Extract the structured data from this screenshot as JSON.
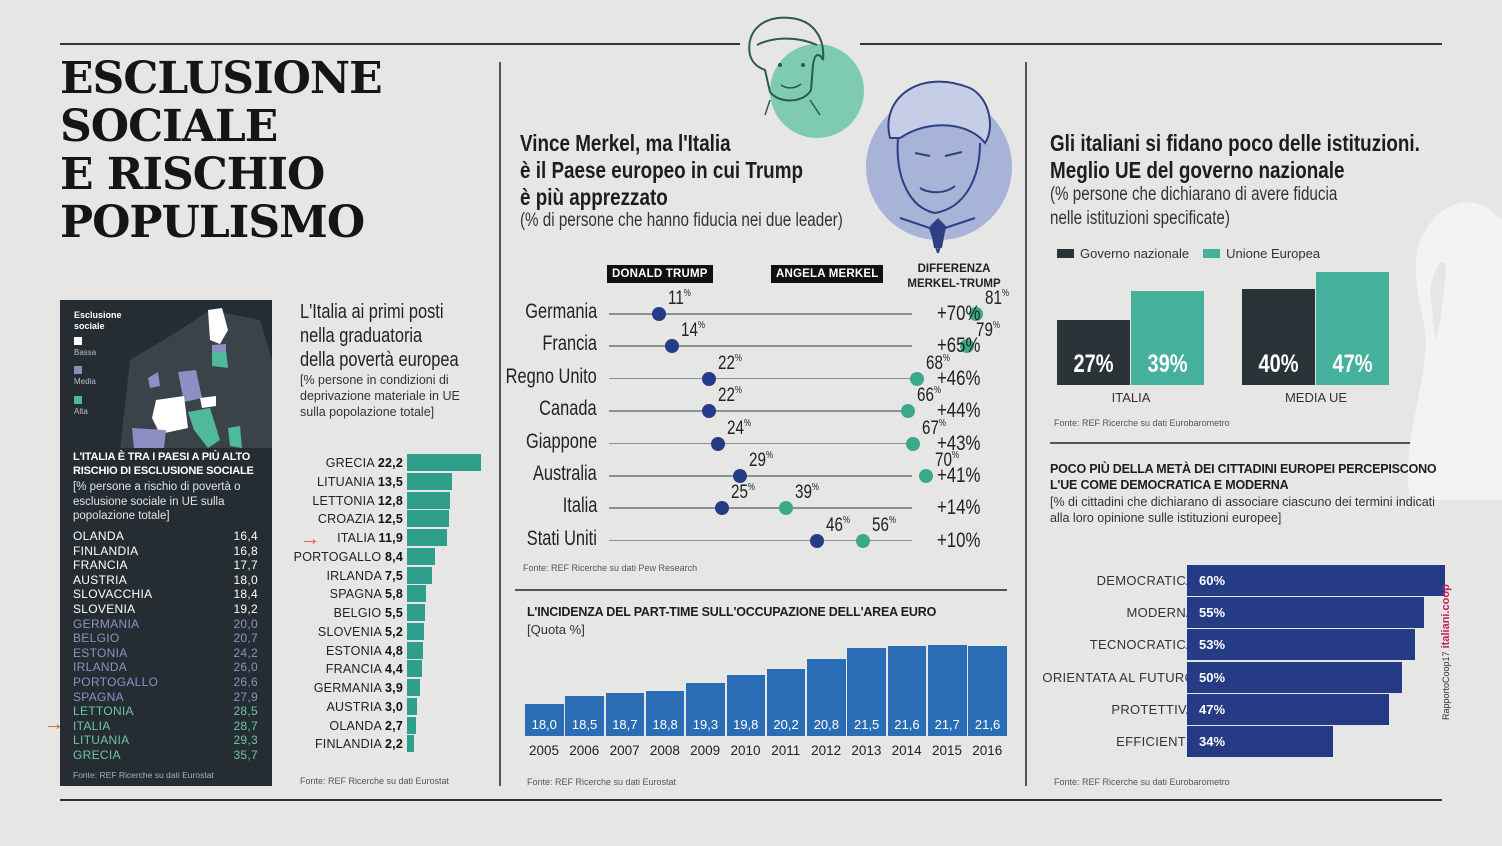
{
  "main_title": [
    "ESCLUSIONE",
    "SOCIALE",
    "E RISCHIO",
    "POPULISMO"
  ],
  "exclusion": {
    "map_legend_title": "Esclusione sociale",
    "map_legend": [
      {
        "label": "Bassa",
        "color": "#ffffff"
      },
      {
        "label": "Media",
        "color": "#8c8fc4"
      },
      {
        "label": "Alta",
        "color": "#4fb99a"
      }
    ],
    "heading": "L'ITALIA È TRA I PAESI A PIÙ ALTO RISCHIO DI ESCLUSIONE SOCIALE",
    "subheading": "[% persone a rischio di povertà o esclusione sociale in UE sulla popolazione totale]",
    "source": "Fonte: REF Ricerche su dati Eurostat",
    "highlight": "ITALIA",
    "rows": [
      {
        "country": "OLANDA",
        "value": "16,4",
        "level": "Bassa"
      },
      {
        "country": "FINLANDIA",
        "value": "16,8",
        "level": "Bassa"
      },
      {
        "country": "FRANCIA",
        "value": "17,7",
        "level": "Bassa"
      },
      {
        "country": "AUSTRIA",
        "value": "18,0",
        "level": "Bassa"
      },
      {
        "country": "SLOVACCHIA",
        "value": "18,4",
        "level": "Bassa"
      },
      {
        "country": "SLOVENIA",
        "value": "19,2",
        "level": "Bassa"
      },
      {
        "country": "GERMANIA",
        "value": "20,0",
        "level": "Media"
      },
      {
        "country": "BELGIO",
        "value": "20,7",
        "level": "Media"
      },
      {
        "country": "ESTONIA",
        "value": "24,2",
        "level": "Media"
      },
      {
        "country": "IRLANDA",
        "value": "26,0",
        "level": "Media"
      },
      {
        "country": "PORTOGALLO",
        "value": "26,6",
        "level": "Media"
      },
      {
        "country": "SPAGNA",
        "value": "27,9",
        "level": "Media"
      },
      {
        "country": "LETTONIA",
        "value": "28,5",
        "level": "Alta"
      },
      {
        "country": "ITALIA",
        "value": "28,7",
        "level": "Alta"
      },
      {
        "country": "LITUANIA",
        "value": "29,3",
        "level": "Alta"
      },
      {
        "country": "GRECIA",
        "value": "35,7",
        "level": "Alta"
      }
    ]
  },
  "deprivation": {
    "title": [
      "L'Italia ai primi posti",
      "nella graduatoria",
      "della povertà europea"
    ],
    "subheading": "[% persone in condizioni di deprivazione materiale in UE sulla popolazione totale]",
    "source": "Fonte: REF Ricerche su dati Eurostat",
    "color": "#2f9e8b"
  },
  "trust": {
    "title": [
      "Vince Merkel, ma l'Italia",
      "è il Paese europeo in cui Trump",
      "è più apprezzato"
    ],
    "subheading": "(% di persone che hanno fiducia nei due leader)",
    "col_trump": "DONALD TRUMP",
    "col_merkel": "ANGELA MERKEL",
    "col_diff": [
      "DIFFERENZA",
      "MERKEL-TRUMP"
    ],
    "source": "Fonte: REF Ricerche su dati Pew Research",
    "trump_color": "#263b86",
    "merkel_color": "#3aa88b"
  },
  "parttime": {
    "title": "L'INCIDENZA DEL PART-TIME SULL'OCCUPAZIONE DELL'AREA EURO",
    "subheading": "[Quota %]",
    "source": "Fonte: REF Ricerche su dati Eurostat",
    "color": "#2a6db4"
  },
  "fiducia": {
    "title": [
      "Gli italiani si fidano poco delle istituzioni.",
      "Meglio UE del governo nazionale"
    ],
    "subheading": [
      "(% persone che dichiarano di avere fiducia",
      "nelle istituzioni specificate)"
    ],
    "source": "Fonte: REF Ricerche su dati Eurobarometro"
  },
  "eu_perception": {
    "title": "POCO PIÙ DELLA METÀ DEI CITTADINI EUROPEI PERCEPISCONO L'UE COME DEMOCRATICA E MODERNA",
    "subheading": "[% di cittadini che dichiarano di associare ciascuno dei termini indicati alla loro opinione sulle istituzioni europee]",
    "source": "Fonte: REF Ricerche su dati Eurobarometro"
  },
  "brand": {
    "text1": "RapportoCoop17",
    "text2": "italiani.coop"
  },
  "chart_data": [
    {
      "type": "bar",
      "orientation": "horizontal",
      "title": "L'Italia ai primi posti nella graduatoria della povertà europea",
      "ylabel": "% persone in condizioni di deprivazione materiale",
      "categories": [
        "GRECIA",
        "LITUANIA",
        "LETTONIA",
        "CROAZIA",
        "ITALIA",
        "PORTOGALLO",
        "IRLANDA",
        "SPAGNA",
        "BELGIO",
        "SLOVENIA",
        "ESTONIA",
        "FRANCIA",
        "GERMANIA",
        "AUSTRIA",
        "OLANDA",
        "FINLANDIA"
      ],
      "values": [
        22.2,
        13.5,
        12.8,
        12.5,
        11.9,
        8.4,
        7.5,
        5.8,
        5.5,
        5.2,
        4.8,
        4.4,
        3.9,
        3.0,
        2.7,
        2.2
      ],
      "labels": [
        "22,2",
        "13,5",
        "12,8",
        "12,5",
        "11,9",
        "8,4",
        "7,5",
        "5,8",
        "5,5",
        "5,2",
        "4,8",
        "4,4",
        "3,9",
        "3,0",
        "2,7",
        "2,2"
      ],
      "highlight": "ITALIA"
    },
    {
      "type": "scatter",
      "subtype": "dumbbell",
      "title": "Vince Merkel, ma l'Italia è il Paese europeo in cui Trump è più apprezzato",
      "categories": [
        "Germania",
        "Francia",
        "Regno Unito",
        "Canada",
        "Giappone",
        "Australia",
        "Italia",
        "Stati Uniti"
      ],
      "series": [
        {
          "name": "DONALD TRUMP",
          "values": [
            11,
            14,
            22,
            22,
            24,
            29,
            25,
            46
          ]
        },
        {
          "name": "ANGELA MERKEL",
          "values": [
            81,
            79,
            68,
            66,
            67,
            70,
            39,
            56
          ]
        }
      ],
      "difference": [
        "+70%",
        "+65%",
        "+46%",
        "+44%",
        "+43%",
        "+41%",
        "+14%",
        "+10%"
      ],
      "xlim": [
        0,
        100
      ]
    },
    {
      "type": "bar",
      "title": "L'INCIDENZA DEL PART-TIME SULL'OCCUPAZIONE DELL'AREA EURO",
      "ylabel": "Quota %",
      "categories": [
        "2005",
        "2006",
        "2007",
        "2008",
        "2009",
        "2010",
        "2011",
        "2012",
        "2013",
        "2014",
        "2015",
        "2016"
      ],
      "values": [
        18.0,
        18.5,
        18.7,
        18.8,
        19.3,
        19.8,
        20.2,
        20.8,
        21.5,
        21.6,
        21.7,
        21.6
      ],
      "labels": [
        "18,0",
        "18,5",
        "18,7",
        "18,8",
        "19,3",
        "19,8",
        "20,2",
        "20,8",
        "21,5",
        "21,6",
        "21,7",
        "21,6"
      ],
      "ylim": [
        16,
        22
      ]
    },
    {
      "type": "bar",
      "title": "Gli italiani si fidano poco delle istituzioni. Meglio UE del governo nazionale",
      "categories": [
        "ITALIA",
        "MEDIA UE"
      ],
      "series": [
        {
          "name": "Governo nazionale",
          "color": "#2a3338",
          "values": [
            27,
            40
          ]
        },
        {
          "name": "Unione Europea",
          "color": "#45b09b",
          "values": [
            39,
            47
          ]
        }
      ],
      "legend": "top-left",
      "ylim": [
        0,
        50
      ]
    },
    {
      "type": "bar",
      "orientation": "horizontal",
      "title": "POCO PIÙ DELLA METÀ DEI CITTADINI EUROPEI PERCEPISCONO L'UE COME DEMOCRATICA E MODERNA",
      "categories": [
        "DEMOCRATICA",
        "MODERNA",
        "TECNOCRATICA",
        "ORIENTATA AL FUTURO",
        "PROTETTIVA",
        "EFFICIENTE"
      ],
      "values": [
        60,
        55,
        53,
        50,
        47,
        34
      ],
      "color": "#263b86",
      "xlim": [
        0,
        60
      ]
    }
  ]
}
